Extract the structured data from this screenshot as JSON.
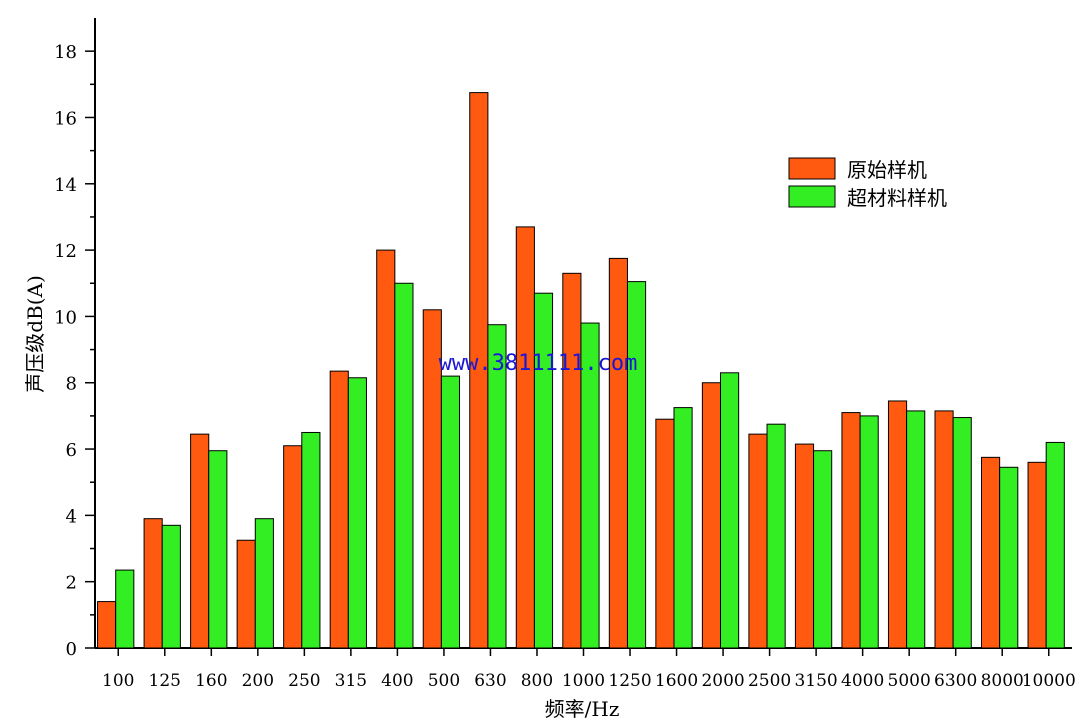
{
  "chart_data": {
    "type": "bar",
    "title": "",
    "xlabel": "频率/Hz",
    "ylabel": "声压级dB(A)",
    "ylim": [
      0,
      19
    ],
    "yticks": [
      0,
      2,
      4,
      6,
      8,
      10,
      12,
      14,
      16,
      18
    ],
    "categories": [
      "100",
      "125",
      "160",
      "200",
      "250",
      "315",
      "400",
      "500",
      "630",
      "800",
      "1000",
      "1250",
      "1600",
      "2000",
      "2500",
      "3150",
      "4000",
      "5000",
      "6300",
      "8000",
      "10000"
    ],
    "series": [
      {
        "name": "原始样机",
        "color": "#ff5a10",
        "values": [
          1.4,
          3.9,
          6.45,
          3.25,
          6.1,
          8.35,
          12.0,
          10.2,
          16.75,
          12.7,
          11.3,
          11.75,
          6.9,
          8.0,
          6.45,
          6.15,
          7.1,
          7.45,
          7.15,
          5.75,
          5.6
        ]
      },
      {
        "name": "超材料样机",
        "color": "#33ee22",
        "values": [
          2.35,
          3.7,
          5.95,
          3.9,
          6.5,
          8.15,
          11.0,
          8.2,
          9.75,
          10.7,
          9.8,
          11.05,
          7.25,
          8.3,
          6.75,
          5.95,
          7.0,
          7.15,
          6.95,
          5.45,
          6.2
        ]
      }
    ],
    "legend_position": "top-right",
    "grid": false
  },
  "watermark": "www.3811111.com"
}
